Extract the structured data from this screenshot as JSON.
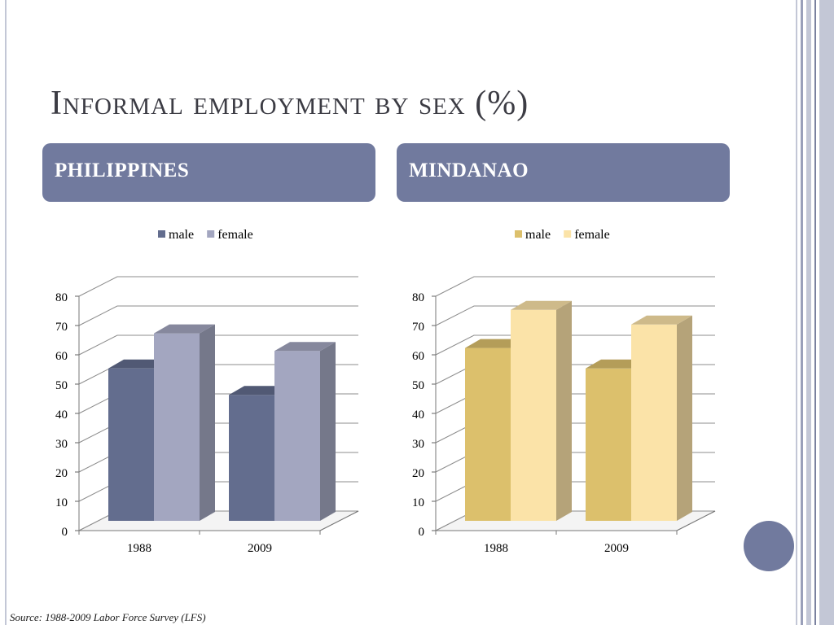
{
  "slide": {
    "title": "Informal employment by sex (%)",
    "source": "Source: 1988-2009 Labor Force Survey (LFS)",
    "panels": [
      {
        "label": "PHILIPPINES"
      },
      {
        "label": "MINDANAO"
      }
    ],
    "colors": {
      "accent": "#717a9e",
      "frame_lines": [
        "#c3c7d6",
        "#9aa0ba",
        "#7a819f"
      ]
    }
  },
  "chart_data": [
    {
      "type": "bar",
      "categories": [
        "1988",
        "2009"
      ],
      "series": [
        {
          "name": "male",
          "values": [
            52,
            43
          ],
          "color": "#636d8e"
        },
        {
          "name": "female",
          "values": [
            64,
            58
          ],
          "color": "#a3a6c0"
        }
      ],
      "ylim": [
        0,
        80
      ],
      "yticks": [
        "0",
        "10",
        "20",
        "30",
        "40",
        "50",
        "60",
        "70",
        "80"
      ],
      "grid": true,
      "legend": "top",
      "style": "3d-column"
    },
    {
      "type": "bar",
      "categories": [
        "1988",
        "2009"
      ],
      "series": [
        {
          "name": "male",
          "values": [
            59,
            52
          ],
          "color": "#dcc06c"
        },
        {
          "name": "female",
          "values": [
            72,
            67
          ],
          "color": "#fbe3a8"
        }
      ],
      "ylim": [
        0,
        80
      ],
      "yticks": [
        "0",
        "10",
        "20",
        "30",
        "40",
        "50",
        "60",
        "70",
        "80"
      ],
      "grid": true,
      "legend": "top",
      "style": "3d-column"
    }
  ]
}
